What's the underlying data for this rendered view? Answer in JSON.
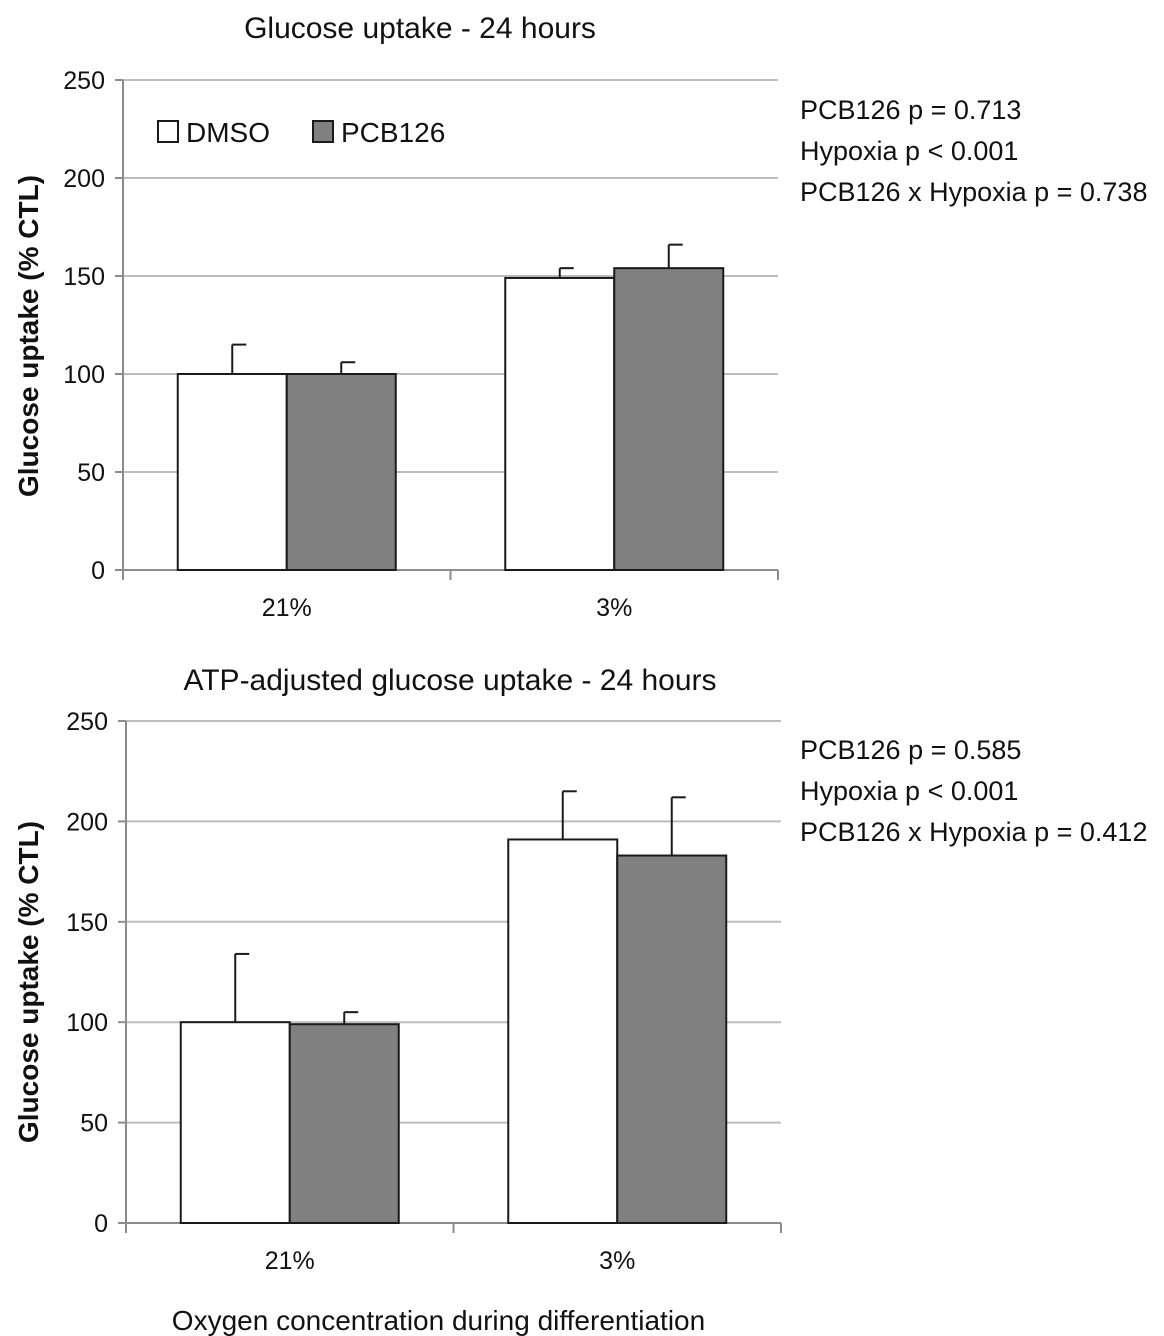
{
  "chart_data": [
    {
      "type": "bar",
      "title": "Glucose uptake - 24 hours",
      "ylabel": "Glucose uptake (% CTL)",
      "xlabel": "",
      "ylim": [
        0,
        250
      ],
      "yticks": [
        0,
        50,
        100,
        150,
        200,
        250
      ],
      "grid": true,
      "categories": [
        "21%",
        "3%"
      ],
      "series": [
        {
          "name": "DMSO",
          "color": "#ffffff",
          "values": [
            100,
            149
          ],
          "errors": [
            15,
            5
          ]
        },
        {
          "name": "PCB126",
          "color": "#808080",
          "values": [
            100,
            154
          ],
          "errors": [
            6,
            12
          ]
        }
      ],
      "legend": "top-left",
      "stats": [
        "PCB126 p = 0.713",
        "Hypoxia p < 0.001",
        "PCB126 x Hypoxia p = 0.738"
      ]
    },
    {
      "type": "bar",
      "title": "ATP-adjusted glucose uptake - 24 hours",
      "ylabel": "Glucose uptake (% CTL)",
      "xlabel": "Oxygen concentration during differentiation",
      "ylim": [
        0,
        250
      ],
      "yticks": [
        0,
        50,
        100,
        150,
        200,
        250
      ],
      "grid": true,
      "categories": [
        "21%",
        "3%"
      ],
      "series": [
        {
          "name": "DMSO",
          "color": "#ffffff",
          "values": [
            100,
            191
          ],
          "errors": [
            34,
            24
          ]
        },
        {
          "name": "PCB126",
          "color": "#808080",
          "values": [
            99,
            183
          ],
          "errors": [
            6,
            29
          ]
        }
      ],
      "stats": [
        "PCB126 p = 0.585",
        "Hypoxia p < 0.001",
        "PCB126 x Hypoxia p = 0.412"
      ]
    }
  ]
}
